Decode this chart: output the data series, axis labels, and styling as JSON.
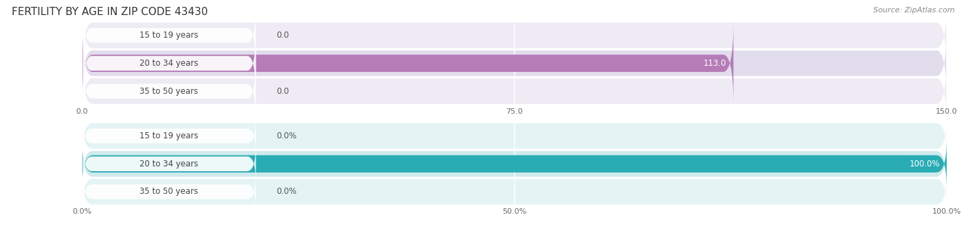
{
  "title": "FERTILITY BY AGE IN ZIP CODE 43430",
  "source": "Source: ZipAtlas.com",
  "top_chart": {
    "categories": [
      "15 to 19 years",
      "20 to 34 years",
      "35 to 50 years"
    ],
    "values": [
      0.0,
      113.0,
      0.0
    ],
    "bar_color": "#b57cb8",
    "label_color": "#555555",
    "xlim": [
      0,
      150
    ],
    "xticks": [
      0.0,
      75.0,
      150.0
    ],
    "xtick_labels": [
      "0.0",
      "75.0",
      "150.0"
    ]
  },
  "bottom_chart": {
    "categories": [
      "15 to 19 years",
      "20 to 34 years",
      "35 to 50 years"
    ],
    "values": [
      0.0,
      100.0,
      0.0
    ],
    "bar_color": "#2aacb5",
    "label_color": "#555555",
    "xlim": [
      0,
      100
    ],
    "xticks": [
      0.0,
      50.0,
      100.0
    ],
    "xtick_labels": [
      "0.0%",
      "50.0%",
      "100.0%"
    ]
  },
  "bar_height": 0.62,
  "row_bg_light": "#eeebf4",
  "row_bg_mid": "#e2dded",
  "row_bg_light_b": "#e4f4f5",
  "row_bg_mid_b": "#d0eaec",
  "background_color": "#ffffff",
  "title_fontsize": 11,
  "label_fontsize": 8.5,
  "value_fontsize": 8.5,
  "tick_fontsize": 8,
  "source_fontsize": 8
}
